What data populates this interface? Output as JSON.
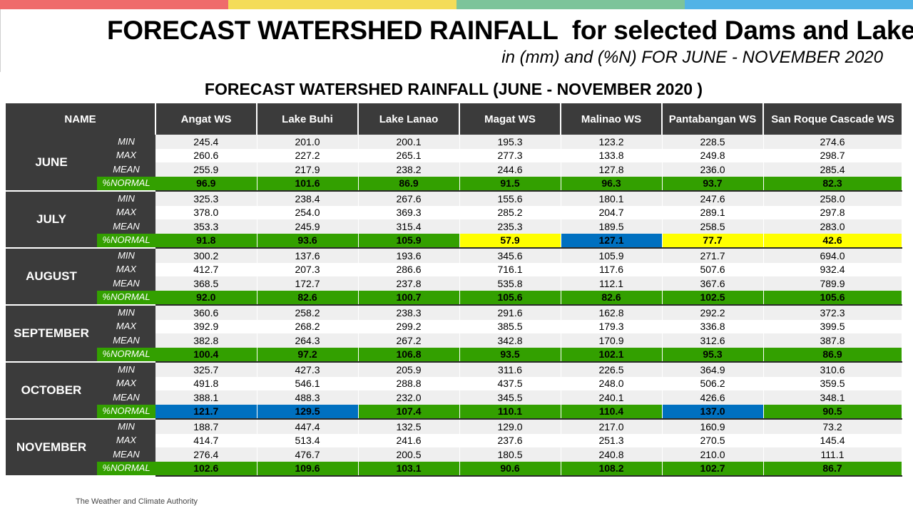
{
  "header": {
    "title": "FORECAST WATERSHED RAINFALL  for selected Dams and Lakes",
    "subtitle": "in (mm) and (%N) FOR JUNE - NOVEMBER 2020",
    "table_title": "FORECAST WATERSHED RAINFALL (JUNE - NOVEMBER 2020 )",
    "footer_text": "The Weather and Climate Authority"
  },
  "colors": {
    "top_bar": [
      "#ef6b6b",
      "#f4dc58",
      "#7cc49a",
      "#52b3e6"
    ],
    "header_bg": "#3b3b3b",
    "near_normal": "#33a000",
    "below_normal": "#ffff00",
    "above_normal": "#0070c0"
  },
  "table": {
    "name_header": "NAME",
    "columns": [
      "Angat WS",
      "Lake Buhi",
      "Lake Lanao",
      "Magat WS",
      "Malinao WS",
      "Pantabangan WS",
      "San Roque Cascade WS"
    ],
    "stat_labels": [
      "MIN",
      "MAX",
      "MEAN",
      "%NORMAL"
    ],
    "months": [
      {
        "name": "JUNE",
        "min": [
          "245.4",
          "201.0",
          "200.1",
          "195.3",
          "123.2",
          "228.5",
          "274.6"
        ],
        "max": [
          "260.6",
          "227.2",
          "265.1",
          "277.3",
          "133.8",
          "249.8",
          "298.7"
        ],
        "mean": [
          "255.9",
          "217.9",
          "238.2",
          "244.6",
          "127.8",
          "236.0",
          "285.4"
        ],
        "normal": [
          "96.9",
          "101.6",
          "86.9",
          "91.5",
          "96.3",
          "93.7",
          "82.3"
        ],
        "normal_class": [
          "near",
          "near",
          "near",
          "near",
          "near",
          "near",
          "near"
        ]
      },
      {
        "name": "JULY",
        "min": [
          "325.3",
          "238.4",
          "267.6",
          "155.6",
          "180.1",
          "247.6",
          "258.0"
        ],
        "max": [
          "378.0",
          "254.0",
          "369.3",
          "285.2",
          "204.7",
          "289.1",
          "297.8"
        ],
        "mean": [
          "353.3",
          "245.9",
          "315.4",
          "235.3",
          "189.5",
          "258.5",
          "283.0"
        ],
        "normal": [
          "91.8",
          "93.6",
          "105.9",
          "57.9",
          "127.1",
          "77.7",
          "42.6"
        ],
        "normal_class": [
          "near",
          "near",
          "near",
          "below",
          "above",
          "below",
          "below"
        ]
      },
      {
        "name": "AUGUST",
        "min": [
          "300.2",
          "137.6",
          "193.6",
          "345.6",
          "105.9",
          "271.7",
          "694.0"
        ],
        "max": [
          "412.7",
          "207.3",
          "286.6",
          "716.1",
          "117.6",
          "507.6",
          "932.4"
        ],
        "mean": [
          "368.5",
          "172.7",
          "237.8",
          "535.8",
          "112.1",
          "367.6",
          "789.9"
        ],
        "normal": [
          "92.0",
          "82.6",
          "100.7",
          "105.6",
          "82.6",
          "102.5",
          "105.6"
        ],
        "normal_class": [
          "near",
          "near",
          "near",
          "near",
          "near",
          "near",
          "near"
        ]
      },
      {
        "name": "SEPTEMBER",
        "min": [
          "360.6",
          "258.2",
          "238.3",
          "291.6",
          "162.8",
          "292.2",
          "372.3"
        ],
        "max": [
          "392.9",
          "268.2",
          "299.2",
          "385.5",
          "179.3",
          "336.8",
          "399.5"
        ],
        "mean": [
          "382.8",
          "264.3",
          "267.2",
          "342.8",
          "170.9",
          "312.6",
          "387.8"
        ],
        "normal": [
          "100.4",
          "97.2",
          "106.8",
          "93.5",
          "102.1",
          "95.3",
          "86.9"
        ],
        "normal_class": [
          "near",
          "near",
          "near",
          "near",
          "near",
          "near",
          "near"
        ]
      },
      {
        "name": "OCTOBER",
        "min": [
          "325.7",
          "427.3",
          "205.9",
          "311.6",
          "226.5",
          "364.9",
          "310.6"
        ],
        "max": [
          "491.8",
          "546.1",
          "288.8",
          "437.5",
          "248.0",
          "506.2",
          "359.5"
        ],
        "mean": [
          "388.1",
          "488.3",
          "232.0",
          "345.5",
          "240.1",
          "426.6",
          "348.1"
        ],
        "normal": [
          "121.7",
          "129.5",
          "107.4",
          "110.1",
          "110.4",
          "137.0",
          "90.5"
        ],
        "normal_class": [
          "above",
          "above",
          "near",
          "near",
          "near",
          "above",
          "near"
        ]
      },
      {
        "name": "NOVEMBER",
        "min": [
          "188.7",
          "447.4",
          "132.5",
          "129.0",
          "217.0",
          "160.9",
          "73.2"
        ],
        "max": [
          "414.7",
          "513.4",
          "241.6",
          "237.6",
          "251.3",
          "270.5",
          "145.4"
        ],
        "mean": [
          "276.4",
          "476.7",
          "200.5",
          "180.5",
          "240.8",
          "210.0",
          "111.1"
        ],
        "normal": [
          "102.6",
          "109.6",
          "103.1",
          "90.6",
          "108.2",
          "102.7",
          "86.7"
        ],
        "normal_class": [
          "near",
          "near",
          "near",
          "near",
          "near",
          "near",
          "near"
        ]
      }
    ]
  }
}
